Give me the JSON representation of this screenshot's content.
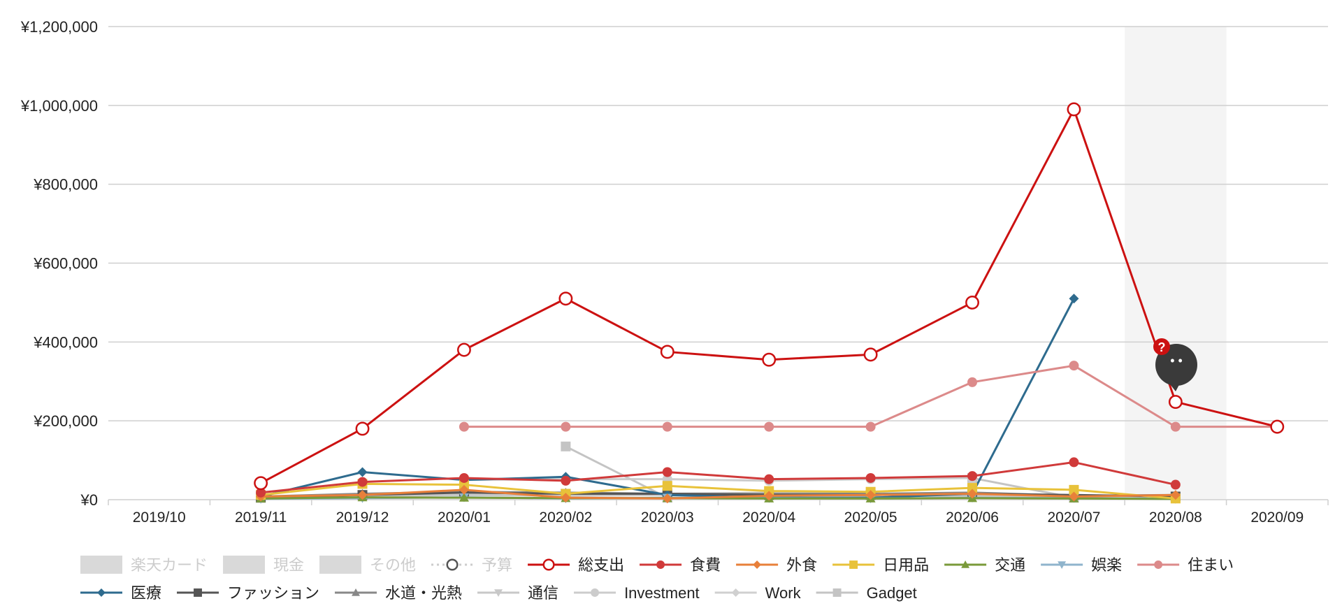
{
  "colors": {
    "grid": "#cfcfcf",
    "highlight_band": "#f4f4f4",
    "disabled": "#cccccc",
    "hint_badge": "#cc1111",
    "tooltip_bubble": "#3a3a3a"
  },
  "hint": {
    "badge_text": "?",
    "bubble_text": "• •",
    "icon": "speech-bubble-icon"
  },
  "chart_data": {
    "type": "line",
    "currency_prefix": "¥",
    "categories": [
      "2019/10",
      "2019/11",
      "2019/12",
      "2020/01",
      "2020/02",
      "2020/03",
      "2020/04",
      "2020/05",
      "2020/06",
      "2020/07",
      "2020/08",
      "2020/09"
    ],
    "highlighted_category": "2020/08",
    "ylim": [
      0,
      1200000
    ],
    "yticks": [
      0,
      200000,
      400000,
      600000,
      800000,
      1000000,
      1200000
    ],
    "ytick_labels": [
      "¥0",
      "¥200,000",
      "¥400,000",
      "¥600,000",
      "¥800,000",
      "¥1,000,000",
      "¥1,200,000"
    ],
    "grid": true,
    "legend_position": "bottom",
    "legend_rows": [
      [
        "楽天カード",
        "現金",
        "その他",
        "予算",
        "総支出",
        "食費",
        "外食",
        "日用品",
        "交通",
        "娯楽",
        "住まい"
      ],
      [
        "医療",
        "ファッション",
        "水道・光熱",
        "通信",
        "Investment",
        "Work",
        "Gadget"
      ]
    ],
    "series": [
      {
        "name": "楽天カード",
        "kind": "bar",
        "enabled": false,
        "color": "#d9d9d9",
        "values": [
          null,
          null,
          null,
          null,
          null,
          null,
          null,
          null,
          null,
          null,
          null,
          null
        ]
      },
      {
        "name": "現金",
        "kind": "bar",
        "enabled": false,
        "color": "#d9d9d9",
        "values": [
          null,
          null,
          null,
          null,
          null,
          null,
          null,
          null,
          null,
          null,
          null,
          null
        ]
      },
      {
        "name": "その他",
        "kind": "bar",
        "enabled": false,
        "color": "#d9d9d9",
        "values": [
          null,
          null,
          null,
          null,
          null,
          null,
          null,
          null,
          null,
          null,
          null,
          null
        ]
      },
      {
        "name": "予算",
        "kind": "line",
        "enabled": false,
        "dashed": true,
        "marker": "circle-open",
        "color": "#cccccc",
        "values": [
          null,
          null,
          null,
          null,
          null,
          null,
          null,
          null,
          null,
          null,
          null,
          null
        ]
      },
      {
        "name": "総支出",
        "kind": "line",
        "enabled": true,
        "marker": "circle-open",
        "color": "#cc1111",
        "width": 3,
        "values": [
          null,
          42000,
          180000,
          380000,
          510000,
          375000,
          355000,
          368000,
          500000,
          990000,
          248000,
          185000
        ]
      },
      {
        "name": "食費",
        "kind": "line",
        "enabled": true,
        "marker": "circle",
        "color": "#d03a3a",
        "width": 3,
        "values": [
          null,
          18000,
          45000,
          55000,
          48000,
          70000,
          52000,
          55000,
          60000,
          95000,
          38000,
          null
        ]
      },
      {
        "name": "外食",
        "kind": "line",
        "enabled": true,
        "marker": "diamond",
        "color": "#e8803a",
        "width": 3,
        "values": [
          null,
          8000,
          12000,
          25000,
          5000,
          3000,
          10000,
          12000,
          15000,
          8000,
          12000,
          null
        ]
      },
      {
        "name": "日用品",
        "kind": "line",
        "enabled": true,
        "marker": "square",
        "color": "#e8c23a",
        "width": 3,
        "values": [
          null,
          12000,
          40000,
          38000,
          15000,
          35000,
          22000,
          20000,
          30000,
          25000,
          3000,
          null
        ]
      },
      {
        "name": "交通",
        "kind": "line",
        "enabled": true,
        "marker": "triangle",
        "color": "#7a9a3a",
        "width": 3,
        "values": [
          null,
          3000,
          6000,
          5000,
          4000,
          4000,
          3000,
          3000,
          4000,
          3000,
          2000,
          null
        ]
      },
      {
        "name": "娯楽",
        "kind": "line",
        "enabled": true,
        "marker": "triangle-down",
        "color": "#8fb4cc",
        "width": 3,
        "values": [
          null,
          2000,
          4000,
          6000,
          3000,
          5000,
          4000,
          3000,
          5000,
          4000,
          2000,
          null
        ]
      },
      {
        "name": "住まい",
        "kind": "line",
        "enabled": true,
        "marker": "circle",
        "color": "#dc8a8a",
        "width": 3,
        "values": [
          null,
          null,
          null,
          185000,
          185000,
          185000,
          185000,
          185000,
          298000,
          340000,
          185000,
          185000
        ]
      },
      {
        "name": "医療",
        "kind": "line",
        "enabled": true,
        "marker": "diamond",
        "color": "#2e6b8e",
        "width": 3,
        "values": [
          null,
          8000,
          70000,
          50000,
          58000,
          12000,
          5000,
          5000,
          15000,
          510000,
          null,
          null
        ]
      },
      {
        "name": "ファッション",
        "kind": "line",
        "enabled": true,
        "marker": "square",
        "color": "#555555",
        "width": 3,
        "values": [
          null,
          5000,
          12000,
          18000,
          15000,
          15000,
          12000,
          12000,
          15000,
          12000,
          8000,
          null
        ]
      },
      {
        "name": "水道・光熱",
        "kind": "line",
        "enabled": true,
        "marker": "triangle",
        "color": "#888888",
        "width": 3,
        "values": [
          null,
          8000,
          15000,
          20000,
          18000,
          15000,
          15000,
          15000,
          18000,
          10000,
          12000,
          null
        ]
      },
      {
        "name": "通信",
        "kind": "line",
        "enabled": true,
        "marker": "triangle-down",
        "color": "#c8c8c8",
        "width": 3,
        "values": [
          null,
          3000,
          8000,
          12000,
          10000,
          12000,
          12000,
          10000,
          10000,
          6000,
          3000,
          null
        ]
      },
      {
        "name": "Investment",
        "kind": "line",
        "enabled": true,
        "marker": "circle",
        "color": "#cccccc",
        "width": 3,
        "values": [
          null,
          null,
          null,
          50000,
          52000,
          52000,
          48000,
          52000,
          55000,
          null,
          null,
          null
        ]
      },
      {
        "name": "Work",
        "kind": "line",
        "enabled": true,
        "marker": "diamond",
        "color": "#d0d0d0",
        "width": 3,
        "values": [
          null,
          5000,
          10000,
          12000,
          10000,
          15000,
          18000,
          15000,
          8000,
          8000,
          5000,
          null
        ]
      },
      {
        "name": "Gadget",
        "kind": "line",
        "enabled": true,
        "marker": "square",
        "color": "#c4c4c4",
        "width": 3,
        "values": [
          null,
          null,
          null,
          null,
          135000,
          5000,
          null,
          null,
          55000,
          5000,
          null,
          null
        ]
      }
    ]
  }
}
